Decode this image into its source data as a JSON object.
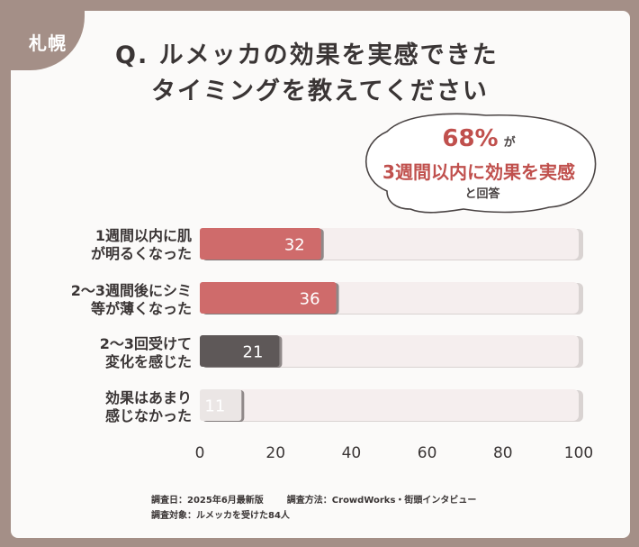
{
  "region_tag": "札幌",
  "title_lines": [
    "Q. ルメッカの効果を実感できた",
    "タイミングを教えてください"
  ],
  "callout": {
    "percent": "68%",
    "suffix": "が",
    "main": "3週間以内に効果を実感",
    "note": "と回答"
  },
  "chart_data": {
    "type": "bar",
    "orientation": "horizontal",
    "categories": [
      [
        "1週間以内に肌",
        "が明るくなった"
      ],
      [
        "2～3週間後にシミ",
        "等が薄くなった"
      ],
      [
        "2～3回受けて",
        "変化を感じた"
      ],
      [
        "効果はあまり",
        "感じなかった"
      ]
    ],
    "values": [
      32,
      36,
      21,
      11
    ],
    "bar_colors": [
      "#cf6b6b",
      "#cf6b6b",
      "#5e5858",
      "#ebe6e5"
    ],
    "label_colors": [
      "#ffffff",
      "#ffffff",
      "#ffffff",
      "#ffffff"
    ],
    "track_color": "#f5eeee",
    "xlim": [
      0,
      100
    ],
    "xticks": [
      "0",
      "20",
      "40",
      "60",
      "80",
      "100"
    ],
    "grid": false
  },
  "footer": {
    "date": "調査日：2025年6月最新版",
    "method": "調査方法：CrowdWorks・街頭インタビュー",
    "subjects": "調査対象：ルメッカを受けた84人"
  }
}
